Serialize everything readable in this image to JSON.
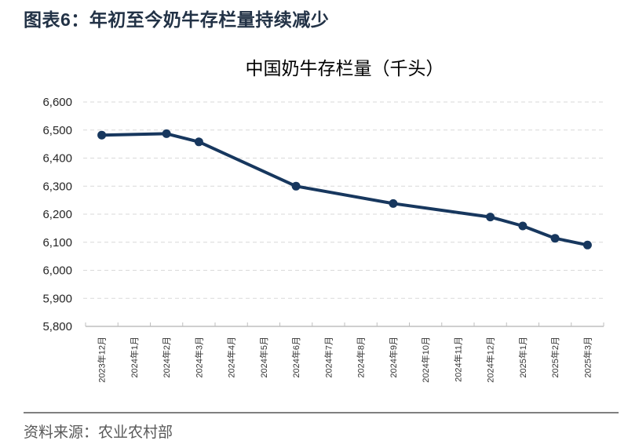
{
  "page": {
    "title": "图表6：年初至今奶牛存栏量持续减少",
    "source": "资料来源：农业农村部"
  },
  "colors": {
    "title_text": "#223246",
    "series": "#17375e",
    "gridline": "#d9d9d9",
    "axis": "#bfbfbf",
    "axis_label_text": "#262626",
    "x_label_text": "#333333",
    "source_text": "#595959",
    "divider": "#808080"
  },
  "chart_data": {
    "type": "line",
    "title": "中国奶牛存栏量（千头）",
    "categories": [
      "2023年12月",
      "2024年1月",
      "2024年2月",
      "2024年3月",
      "2024年4月",
      "2024年5月",
      "2024年6月",
      "2024年7月",
      "2024年8月",
      "2024年9月",
      "2024年10月",
      "2024年11月",
      "2024年12月",
      "2025年1月",
      "2025年2月",
      "2025年3月"
    ],
    "series": [
      {
        "name": "中国奶牛存栏量",
        "values": [
          6482,
          null,
          6487,
          6458,
          null,
          null,
          6300,
          null,
          null,
          6238,
          null,
          null,
          6190,
          6158,
          6114,
          6090
        ]
      }
    ],
    "ylim": [
      5800,
      6600
    ],
    "ytick_step": 100,
    "xlabel": "",
    "ylabel": "",
    "grid": "horizontal-dashed",
    "legend": "none",
    "marker": "circle",
    "x_label_rotation_deg": -90
  }
}
